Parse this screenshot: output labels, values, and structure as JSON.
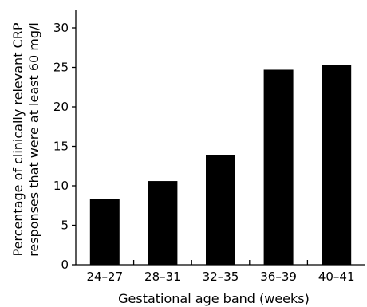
{
  "chart_data": {
    "type": "bar",
    "title": "",
    "xlabel": "Gestational age band (weeks)",
    "ylabel_lines": [
      "Percentage of clinically relevant CRP",
      "responses that were at least 60 mg/l"
    ],
    "categories": [
      "24–27",
      "28–31",
      "32–35",
      "36–39",
      "40–41"
    ],
    "values": [
      8.3,
      10.6,
      13.9,
      24.7,
      25.3
    ],
    "ylim": [
      0,
      30
    ],
    "yticks": [
      0,
      5,
      10,
      15,
      20,
      25,
      30
    ],
    "grid": false,
    "bar_color": "#000000"
  }
}
